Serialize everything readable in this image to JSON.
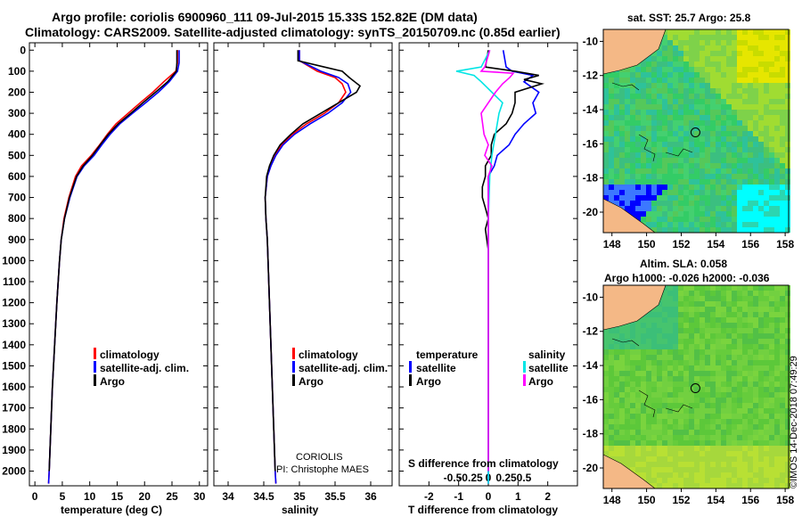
{
  "title": {
    "line1": "Argo profile: coriolis 6900960_111 09-Jul-2015 15.33S 152.82E (DM data)",
    "line2": "Climatology: CARS2009. Satellite-adjusted climatology: synTS_20150709.nc (0.85d earlier)"
  },
  "colors": {
    "climatology": "#ff0000",
    "satellite": "#0000ff",
    "argo": "#000000",
    "sal_satellite": "#00e5e5",
    "sal_argo": "#ff00ff"
  },
  "depth_ticks": [
    0,
    100,
    200,
    300,
    400,
    500,
    600,
    700,
    800,
    900,
    1000,
    1100,
    1200,
    1300,
    1400,
    1500,
    1600,
    1700,
    1800,
    1900,
    2000
  ],
  "chart_data": [
    {
      "type": "line",
      "name": "temperature-profile",
      "xlabel": "temperature (deg C)",
      "ylabel": "depth",
      "xlim": [
        -1,
        31.5
      ],
      "ylim": [
        2070,
        -35
      ],
      "xticks": [
        0,
        5,
        10,
        15,
        20,
        25,
        30
      ],
      "legend": [
        "climatology",
        "satellite-adj. clim.",
        "Argo"
      ],
      "series": [
        {
          "name": "climatology",
          "depth": [
            0,
            60,
            100,
            150,
            200,
            250,
            300,
            350,
            400,
            450,
            500,
            550,
            600,
            700,
            800,
            900,
            1000,
            1200,
            1400,
            1600,
            1800,
            2000,
            2060
          ],
          "values": [
            26,
            26,
            25.7,
            23.5,
            21.5,
            19.2,
            17,
            14.8,
            13.2,
            11.8,
            10.3,
            8.5,
            7.4,
            6.2,
            5.3,
            4.8,
            4.5,
            4,
            3.6,
            3.2,
            2.9,
            2.6,
            2.5
          ]
        },
        {
          "name": "satellite",
          "depth": [
            0,
            60,
            100,
            150,
            200,
            250,
            300,
            350,
            400,
            450,
            500,
            550,
            600,
            700,
            800,
            900,
            1000,
            1200,
            1400,
            1600,
            1800,
            2000,
            2060
          ],
          "values": [
            26.3,
            26.3,
            26,
            24.5,
            22.5,
            20.2,
            17.8,
            15.5,
            13.7,
            12.2,
            10.8,
            9,
            7.7,
            6.4,
            5.4,
            4.8,
            4.5,
            4,
            3.6,
            3.2,
            2.9,
            2.6,
            2.5
          ]
        },
        {
          "name": "argo",
          "depth": [
            0,
            60,
            100,
            150,
            200,
            250,
            300,
            350,
            400,
            450,
            500,
            550,
            600,
            700,
            800,
            900,
            1000,
            1200,
            1400,
            1600,
            1800,
            2000
          ],
          "values": [
            25.9,
            25.9,
            25.8,
            24.2,
            22,
            19.7,
            17.5,
            15.2,
            13.4,
            11.9,
            10.5,
            8.8,
            7.6,
            6.3,
            5.4,
            4.8,
            4.5,
            4,
            3.6,
            3.2,
            2.9,
            2.6
          ]
        }
      ]
    },
    {
      "type": "line",
      "name": "salinity-profile",
      "xlabel": "salinity",
      "ylabel": "depth",
      "xlim": [
        33.8,
        36.3
      ],
      "ylim": [
        2070,
        -35
      ],
      "xticks": [
        34,
        34.5,
        35,
        35.5,
        36
      ],
      "legend": [
        "climatology",
        "satellite-adj. clim.",
        "Argo"
      ],
      "annotations": [
        "CORIOLIS",
        "PI: Christophe MAES"
      ],
      "series": [
        {
          "name": "climatology",
          "depth": [
            0,
            50,
            100,
            130,
            160,
            200,
            250,
            300,
            350,
            400,
            450,
            500,
            550,
            600,
            700,
            800,
            900,
            1000,
            1200,
            1400,
            1600,
            1800,
            2000,
            2060
          ],
          "values": [
            35,
            35,
            35.25,
            35.5,
            35.6,
            35.65,
            35.55,
            35.35,
            35.1,
            34.9,
            34.75,
            34.66,
            34.6,
            34.55,
            34.52,
            34.53,
            34.55,
            34.56,
            34.58,
            34.6,
            34.62,
            34.64,
            34.66,
            34.67
          ]
        },
        {
          "name": "satellite",
          "depth": [
            0,
            50,
            100,
            130,
            160,
            200,
            250,
            300,
            350,
            400,
            450,
            500,
            550,
            600,
            700,
            800,
            900,
            1000,
            1200,
            1400,
            1600,
            1800,
            2000,
            2060
          ],
          "values": [
            35,
            35,
            35.3,
            35.55,
            35.68,
            35.72,
            35.6,
            35.4,
            35.15,
            34.93,
            34.77,
            34.67,
            34.6,
            34.55,
            34.52,
            34.53,
            34.55,
            34.56,
            34.58,
            34.6,
            34.62,
            34.64,
            34.66,
            34.67
          ]
        },
        {
          "name": "argo",
          "depth": [
            0,
            50,
            80,
            100,
            130,
            170,
            200,
            250,
            300,
            350,
            400,
            450,
            500,
            550,
            600,
            700,
            800,
            900,
            1000,
            1200,
            1400,
            1600,
            1800,
            2000
          ],
          "values": [
            34.98,
            34.98,
            35.35,
            35.6,
            35.7,
            35.85,
            35.8,
            35.55,
            35.3,
            35.05,
            34.88,
            34.73,
            34.64,
            34.58,
            34.54,
            34.52,
            34.53,
            34.55,
            34.56,
            34.58,
            34.6,
            34.62,
            34.64,
            34.66
          ]
        }
      ]
    },
    {
      "type": "line",
      "name": "difference-profile",
      "xlabel": "T difference from climatology",
      "xlabel2": "S difference from climatology",
      "ylabel": "depth",
      "xlim": [
        -3,
        3
      ],
      "ylim": [
        2070,
        -35
      ],
      "xticks": [
        -2,
        -1,
        0,
        1,
        2
      ],
      "xticks_s": [
        -0.5,
        -0.25,
        0,
        0.25,
        0.5
      ],
      "legend_left_title": "temperature",
      "legend_right_title": "salinity",
      "legend_left": [
        "satellite",
        "Argo"
      ],
      "legend_right": [
        "satellite",
        "Argo"
      ],
      "series": [
        {
          "name": "T satellite",
          "depth": [
            0,
            80,
            100,
            120,
            150,
            200,
            250,
            300,
            350,
            400,
            450,
            500,
            550,
            600,
            700,
            800,
            900,
            1000,
            1200,
            1400,
            1600,
            1800,
            2000,
            2060
          ],
          "values": [
            0.5,
            0.6,
            0.8,
            1.5,
            1.2,
            1.7,
            1.5,
            1.6,
            1.2,
            0.9,
            0.7,
            0.3,
            0.2,
            0,
            0,
            0,
            0,
            0,
            0,
            0,
            0,
            0,
            0,
            0
          ]
        },
        {
          "name": "T argo",
          "depth": [
            0,
            80,
            100,
            120,
            140,
            160,
            200,
            250,
            300,
            350,
            400,
            450,
            500,
            550,
            600,
            650,
            700,
            750,
            800,
            850,
            900,
            950,
            1000,
            1200,
            1400,
            1600,
            1800,
            2000
          ],
          "values": [
            0,
            -0.1,
            0.9,
            1.7,
            1.2,
            1.8,
            0.9,
            0.9,
            0.8,
            0.6,
            0.2,
            0.1,
            0.1,
            -0.1,
            -0.1,
            -0.2,
            -0.2,
            -0.1,
            0,
            -0.1,
            -0.05,
            0,
            0,
            0,
            0,
            0,
            0,
            0
          ]
        },
        {
          "name": "S satellite",
          "depth": [
            0,
            80,
            100,
            120,
            150,
            200,
            250,
            300,
            400,
            500,
            600,
            800,
            1000,
            1400,
            1800,
            2060
          ],
          "values": [
            0.02,
            -0.1,
            -0.45,
            -0.2,
            -0.1,
            0.05,
            0.2,
            0.15,
            0.1,
            0.05,
            0.02,
            0,
            0,
            0,
            0,
            0
          ]
        },
        {
          "name": "S argo",
          "depth": [
            0,
            80,
            100,
            110,
            130,
            160,
            200,
            300,
            400,
            450,
            500,
            550,
            600,
            800,
            1000,
            1400,
            1800,
            2000
          ],
          "values": [
            0.02,
            -0.05,
            -0.1,
            0.35,
            0.3,
            0.2,
            0.1,
            -0.1,
            -0.06,
            0,
            -0.05,
            0.05,
            0,
            0,
            0,
            0,
            0,
            0
          ]
        }
      ]
    }
  ],
  "maps": {
    "top": {
      "title": "sat. SST: 25.7 Argo: 25.8",
      "lat_ticks": [
        -10,
        -12,
        -14,
        -16,
        -18,
        -20
      ],
      "lon_ticks": [
        148,
        150,
        152,
        154,
        156,
        158
      ]
    },
    "bottom": {
      "title1": "Altim. SLA: 0.058",
      "title2": "Argo h1000: -0.026 h2000: -0.036",
      "lat_ticks": [
        -10,
        -12,
        -14,
        -16,
        -18,
        -20
      ],
      "lon_ticks": [
        148,
        150,
        152,
        154,
        156,
        158
      ]
    },
    "credit": "©IMOS 14-Dec-2018 07:49:29"
  }
}
